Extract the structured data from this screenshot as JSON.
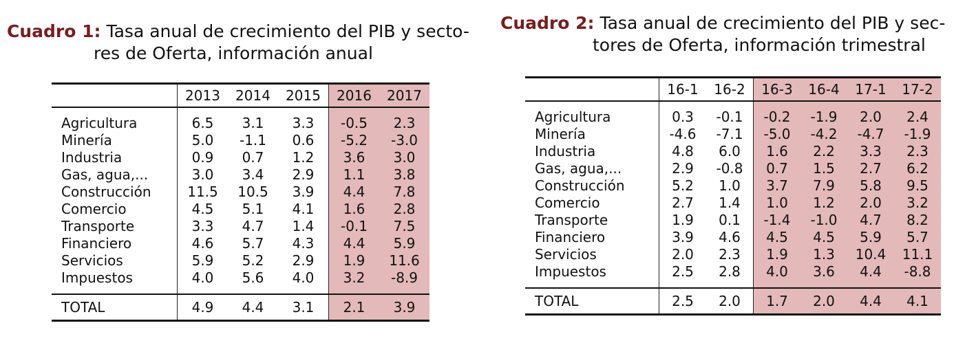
{
  "cuadro1": {
    "label": "Cuadro 1:",
    "title_line1": "Tasa anual de crecimiento del PIB y secto-",
    "title_line2": "res de Oferta, información anual",
    "columns": [
      "2013",
      "2014",
      "2015",
      "2016",
      "2017"
    ],
    "highlight_from": 3,
    "rows": [
      {
        "name": "Agricultura",
        "values": [
          "6.5",
          "3.1",
          "3.3",
          "-0.5",
          "2.3"
        ]
      },
      {
        "name": "Minería",
        "values": [
          "5.0",
          "-1.1",
          "0.6",
          "-5.2",
          "-3.0"
        ]
      },
      {
        "name": "Industria",
        "values": [
          "0.9",
          "0.7",
          "1.2",
          "3.6",
          "3.0"
        ]
      },
      {
        "name": "Gas, agua,...",
        "values": [
          "3.0",
          "3.4",
          "2.9",
          "1.1",
          "3.8"
        ]
      },
      {
        "name": "Construcción",
        "values": [
          "11.5",
          "10.5",
          "3.9",
          "4.4",
          "7.8"
        ]
      },
      {
        "name": "Comercio",
        "values": [
          "4.5",
          "5.1",
          "4.1",
          "1.6",
          "2.8"
        ]
      },
      {
        "name": "Transporte",
        "values": [
          "3.3",
          "4.7",
          "1.4",
          "-0.1",
          "7.5"
        ]
      },
      {
        "name": "Financiero",
        "values": [
          "4.6",
          "5.7",
          "4.3",
          "4.4",
          "5.9"
        ]
      },
      {
        "name": "Servicios",
        "values": [
          "5.9",
          "5.2",
          "2.9",
          "1.9",
          "11.6"
        ]
      },
      {
        "name": "Impuestos",
        "values": [
          "4.0",
          "5.6",
          "4.0",
          "3.2",
          "-8.9"
        ]
      }
    ],
    "total": {
      "name": "TOTAL",
      "values": [
        "4.9",
        "4.4",
        "3.1",
        "2.1",
        "3.9"
      ]
    }
  },
  "cuadro2": {
    "label": "Cuadro 2:",
    "title_line1": "Tasa anual de crecimiento del PIB y sec-",
    "title_line2": "tores de Oferta, información trimestral",
    "columns": [
      "16-1",
      "16-2",
      "16-3",
      "16-4",
      "17-1",
      "17-2"
    ],
    "highlight_from": 2,
    "rows": [
      {
        "name": "Agricultura",
        "values": [
          "0.3",
          "-0.1",
          "-0.2",
          "-1.9",
          "2.0",
          "2.4"
        ]
      },
      {
        "name": "Minería",
        "values": [
          "-4.6",
          "-7.1",
          "-5.0",
          "-4.2",
          "-4.7",
          "-1.9"
        ]
      },
      {
        "name": "Industria",
        "values": [
          "4.8",
          "6.0",
          "1.6",
          "2.2",
          "3.3",
          "2.3"
        ]
      },
      {
        "name": "Gas, agua,...",
        "values": [
          "2.9",
          "-0.8",
          "0.7",
          "1.5",
          "2.7",
          "6.2"
        ]
      },
      {
        "name": "Construcción",
        "values": [
          "5.2",
          "1.0",
          "3.7",
          "7.9",
          "5.8",
          "9.5"
        ]
      },
      {
        "name": "Comercio",
        "values": [
          "2.7",
          "1.4",
          "1.0",
          "1.2",
          "2.0",
          "3.2"
        ]
      },
      {
        "name": "Transporte",
        "values": [
          "1.9",
          "0.1",
          "-1.4",
          "-1.0",
          "4.7",
          "8.2"
        ]
      },
      {
        "name": "Financiero",
        "values": [
          "3.9",
          "4.6",
          "4.5",
          "4.5",
          "5.9",
          "5.7"
        ]
      },
      {
        "name": "Servicios",
        "values": [
          "2.0",
          "2.3",
          "1.9",
          "1.3",
          "10.4",
          "11.1"
        ]
      },
      {
        "name": "Impuestos",
        "values": [
          "2.5",
          "2.8",
          "4.0",
          "3.6",
          "4.4",
          "-8.8"
        ]
      }
    ],
    "total": {
      "name": "TOTAL",
      "values": [
        "2.5",
        "2.0",
        "1.7",
        "2.0",
        "4.4",
        "4.1"
      ]
    }
  }
}
